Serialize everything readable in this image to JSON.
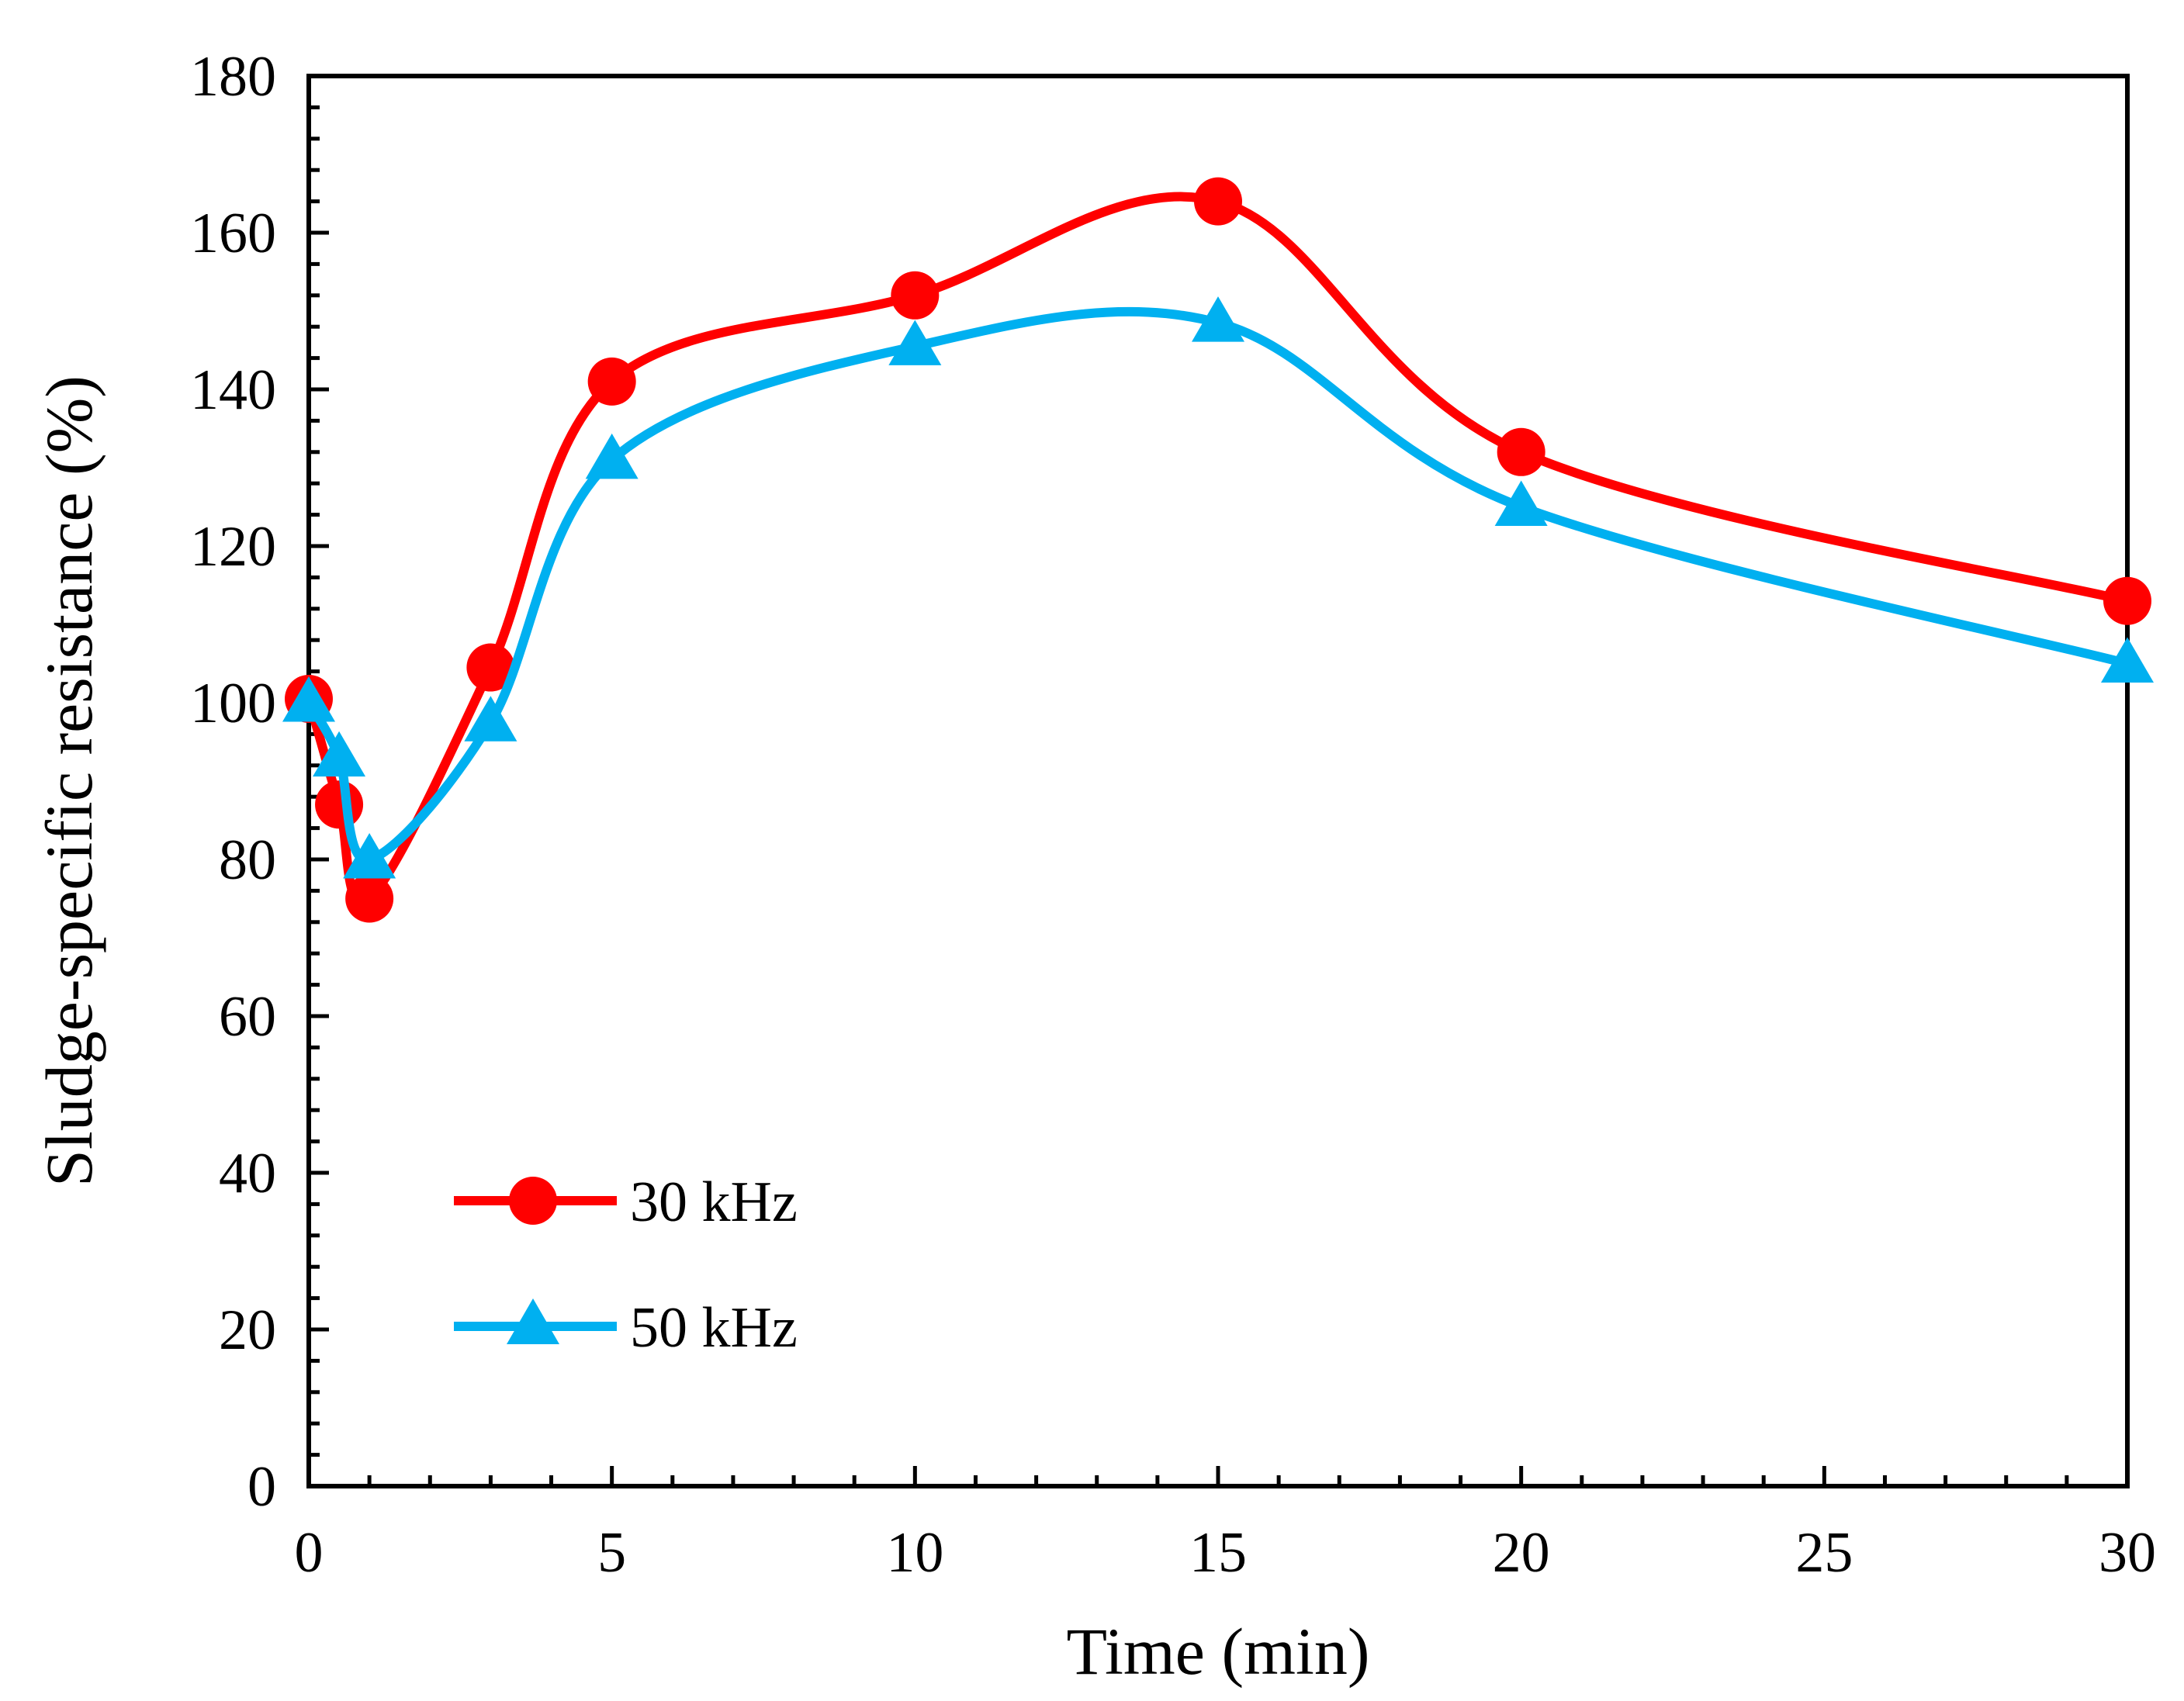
{
  "chart_data": {
    "type": "line",
    "title": "",
    "xlabel": "Time (min)",
    "ylabel": "Sludge-specific resistance (%)",
    "xlim": [
      0,
      30
    ],
    "ylim": [
      0,
      180
    ],
    "x_ticks": [
      0,
      5,
      10,
      15,
      20,
      25,
      30
    ],
    "y_ticks": [
      0,
      20,
      40,
      60,
      80,
      100,
      120,
      140,
      160,
      180
    ],
    "grid": false,
    "legend_position": "bottom-left",
    "series": [
      {
        "name": "30 kHz",
        "color": "#ff0000",
        "marker": "circle",
        "x": [
          0,
          0.5,
          1,
          3,
          5,
          10,
          15,
          20,
          30
        ],
        "values": [
          100.5,
          87,
          75,
          104.5,
          141,
          152,
          164,
          132,
          113
        ]
      },
      {
        "name": "50 kHz",
        "color": "#00b0f0",
        "marker": "triangle",
        "x": [
          0,
          0.5,
          1,
          3,
          5,
          10,
          15,
          20,
          30
        ],
        "values": [
          100,
          93,
          80,
          97.5,
          131,
          145.5,
          148.5,
          125,
          105
        ]
      }
    ]
  }
}
